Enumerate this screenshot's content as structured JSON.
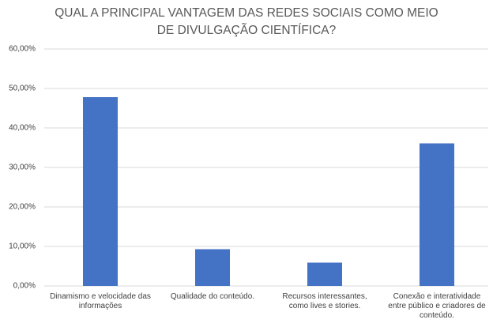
{
  "chart_data": {
    "type": "bar",
    "title": "QUAL A PRINCIPAL VANTAGEM DAS REDES SOCIAIS COMO MEIO DE DIVULGAÇÃO CIENTÍFICA?",
    "categories": [
      "Dinamismo e velocidade das informações",
      "Qualidade do conteúdo.",
      "Recursos interessantes, como lives e stories.",
      "Conexão e interatividade entre público e criadores de conteúdo."
    ],
    "values": [
      47.8,
      9.3,
      5.9,
      36.1
    ],
    "color": "#4472c4",
    "ylim": [
      0,
      60
    ],
    "yticks": [
      {
        "value": 0,
        "label": "0,00%"
      },
      {
        "value": 10,
        "label": "10,00%"
      },
      {
        "value": 20,
        "label": "20,00%"
      },
      {
        "value": 30,
        "label": "30,00%"
      },
      {
        "value": 40,
        "label": "40,00%"
      },
      {
        "value": 50,
        "label": "50,00%"
      },
      {
        "value": 60,
        "label": "60,00%"
      }
    ],
    "grid": true
  }
}
